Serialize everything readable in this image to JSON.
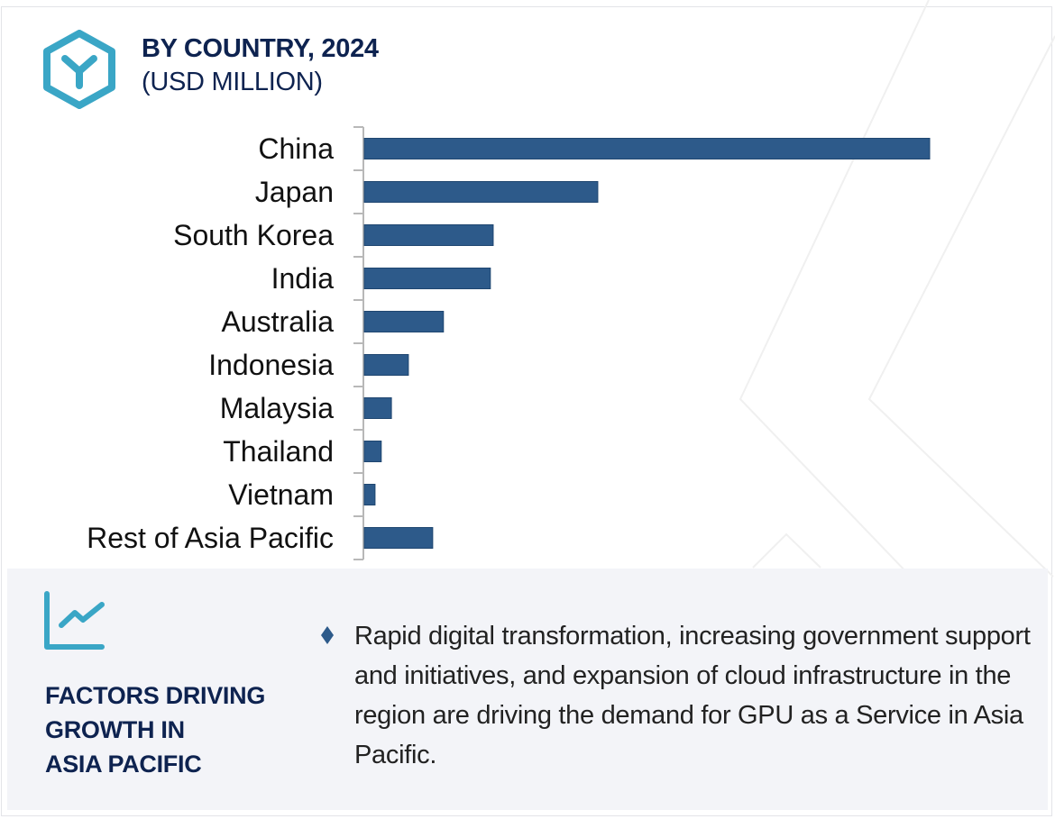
{
  "header": {
    "title": "BY COUNTRY, 2024",
    "subtitle": "(USD MILLION)",
    "icon": "hexagon-y-logo-icon"
  },
  "colors": {
    "bar": "#2d5a8a",
    "accent": "#3aa6c6",
    "title": "#0e2350",
    "panel_bg": "#f3f4f8",
    "axis": "#b8b8b8"
  },
  "chart_data": {
    "type": "bar",
    "orientation": "horizontal",
    "title": "BY COUNTRY, 2024",
    "subtitle": "(USD MILLION)",
    "xlabel": "",
    "ylabel": "",
    "value_note": "No value axis or data labels shown; values are relative magnitudes estimated from bar lengths (China = 100)",
    "categories": [
      "China",
      "Japan",
      "South Korea",
      "India",
      "Australia",
      "Indonesia",
      "Malaysia",
      "Thailand",
      "Vietnam",
      "Rest of Asia Pacific"
    ],
    "values": [
      100,
      41.3,
      22.8,
      22.3,
      14.0,
      7.8,
      4.8,
      3.0,
      1.9,
      12.1
    ],
    "xlim": [
      0,
      100
    ],
    "grid": false,
    "legend": "none"
  },
  "factors": {
    "icon": "trend-line-chart-icon",
    "title_lines": [
      "FACTORS DRIVING",
      "GROWTH IN",
      "ASIA PACIFIC"
    ],
    "bullet_icon": "diamond-bullet-icon",
    "text": "Rapid digital transformation, increasing government support and initiatives, and expansion of cloud infrastructure in the region are driving the demand for GPU as a Service in Asia Pacific."
  }
}
